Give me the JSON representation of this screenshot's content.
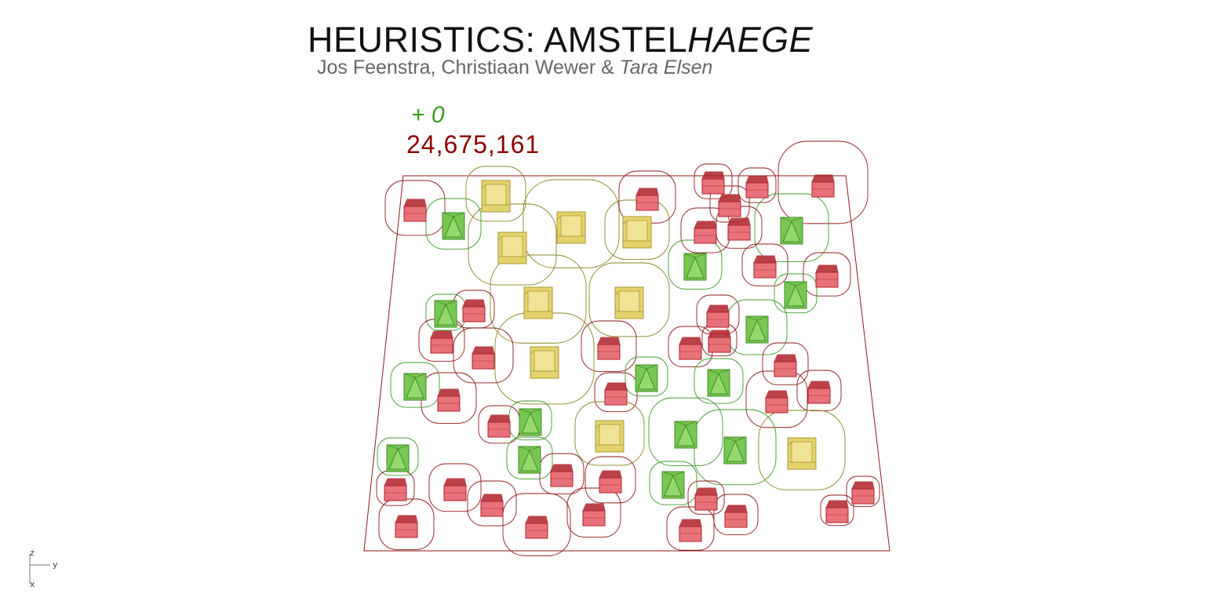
{
  "header": {
    "title_main": "HEURISTICS: AMSTEL",
    "title_italic": "HAEGE",
    "subtitle_main": "Jos Feenstra, Christiaan Wewer & ",
    "subtitle_italic": "Tara Elsen"
  },
  "score": {
    "delta": "+ 0",
    "total": "24,675,161"
  },
  "colors": {
    "red": "#e8727a",
    "red_dark": "#b0222a",
    "green": "#7ac653",
    "green_dark": "#3f8f28",
    "yellow": "#e3d36a",
    "yellow_dark": "#a8993a",
    "ring_red": "#8f1a1a",
    "ring_green": "#3e9a2a",
    "ring_yellow": "#8a8520",
    "delta_text": "#3a9a1e",
    "score_text": "#8b0000"
  },
  "axes": {
    "z": "z",
    "y": "y",
    "x": "x"
  }
}
